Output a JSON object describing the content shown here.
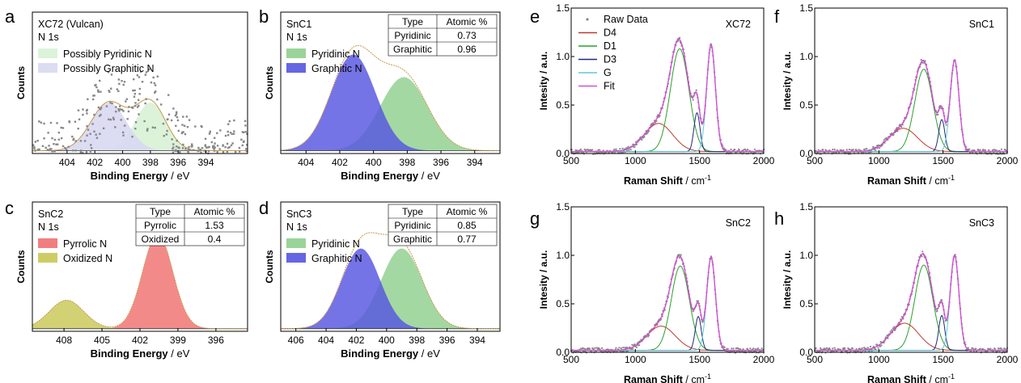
{
  "colors": {
    "pyridinic": "#8fcf8f",
    "graphitic": "#5555e0",
    "pyrrolic": "#f07070",
    "oxidized": "#c8c855",
    "possibly_pyridinic": "#d8f2d6",
    "possibly_graphitic": "#d8d8f2",
    "xps_envelope": "#c8964a",
    "raw_points": "#888888",
    "D4": "#c0392b",
    "D1": "#2ca02c",
    "D3": "#1f2a7a",
    "G": "#5fc8d8",
    "Fit": "#d050d0"
  },
  "chart_data": [
    {
      "panel": "a",
      "type": "area",
      "sample": "XC72 (Vulcan)",
      "line": "N 1s",
      "xlabel_bold": "Binding Energy",
      "xlabel_unit": " / eV",
      "ylabel": "Counts",
      "xlim": [
        406.5,
        391
      ],
      "ylim": [
        0,
        1.0
      ],
      "xticks": [
        404,
        402,
        400,
        398,
        396,
        394
      ],
      "peaks": [
        {
          "name": "Possibly Pyridinic N",
          "center": 398.0,
          "fwhm": 2.6,
          "height": 0.34,
          "color": "possibly_pyridinic"
        },
        {
          "name": "Possibly Graphitic N",
          "center": 401.0,
          "fwhm": 3.0,
          "height": 0.34,
          "color": "possibly_graphitic"
        }
      ],
      "legend": [
        "Possibly Pyridinic N",
        "Possibly Graphitic N"
      ],
      "scatter": true,
      "table": null
    },
    {
      "panel": "b",
      "type": "area",
      "sample": "SnC1",
      "line": "N 1s",
      "xlabel_bold": "Binding Energy",
      "xlabel_unit": " / eV",
      "ylabel": "Counts",
      "xlim": [
        405.5,
        392.5
      ],
      "ylim": [
        0,
        1.0
      ],
      "xticks": [
        404,
        402,
        400,
        398,
        396,
        394
      ],
      "peaks": [
        {
          "name": "Pyridinic N",
          "center": 398.2,
          "fwhm": 3.3,
          "height": 0.52,
          "color": "pyridinic"
        },
        {
          "name": "Graphitic N",
          "center": 401.2,
          "fwhm": 3.1,
          "height": 0.68,
          "color": "graphitic"
        }
      ],
      "legend": [
        "Pyridinic N",
        "Graphitic N"
      ],
      "scatter": false,
      "table": {
        "headers": [
          "Type",
          "Atomic %"
        ],
        "rows": [
          [
            "Pyridinic",
            "0.73"
          ],
          [
            "Graphitic",
            "0.96"
          ]
        ]
      }
    },
    {
      "panel": "c",
      "type": "area",
      "sample": "SnC2",
      "line": "N 1s",
      "xlabel_bold": "Binding Energy",
      "xlabel_unit": " / eV",
      "ylabel": "Counts",
      "xlim": [
        410.5,
        393.5
      ],
      "ylim": [
        0,
        1.0
      ],
      "xticks": [
        408,
        405,
        402,
        399,
        396
      ],
      "peaks": [
        {
          "name": "Pyrrolic N",
          "center": 400.6,
          "fwhm": 2.8,
          "height": 0.73,
          "color": "pyrrolic"
        },
        {
          "name": "Oxidized N",
          "center": 407.8,
          "fwhm": 3.2,
          "height": 0.22,
          "color": "oxidized"
        }
      ],
      "legend": [
        "Pyrrolic N",
        "Oxidized N"
      ],
      "scatter": false,
      "table": {
        "headers": [
          "Type",
          "Atomic %"
        ],
        "rows": [
          [
            "Pyrrolic",
            "1.53"
          ],
          [
            "Oxidized",
            "0.4"
          ]
        ]
      }
    },
    {
      "panel": "d",
      "type": "area",
      "sample": "SnC3",
      "line": "N 1s",
      "xlabel_bold": "Binding Energy",
      "xlabel_unit": " / eV",
      "ylabel": "Counts",
      "xlim": [
        407,
        392.5
      ],
      "ylim": [
        0,
        1.0
      ],
      "xticks": [
        406,
        404,
        402,
        400,
        398,
        396,
        394
      ],
      "peaks": [
        {
          "name": "Pyridinic N",
          "center": 399.0,
          "fwhm": 3.2,
          "height": 0.62,
          "color": "pyridinic"
        },
        {
          "name": "Graphitic N",
          "center": 401.7,
          "fwhm": 3.0,
          "height": 0.62,
          "color": "graphitic"
        }
      ],
      "legend": [
        "Pyridinic N",
        "Graphitic N"
      ],
      "scatter": false,
      "table": {
        "headers": [
          "Type",
          "Atomic %"
        ],
        "rows": [
          [
            "Pyridinic",
            "0.85"
          ],
          [
            "Graphitic",
            "0.77"
          ]
        ]
      }
    },
    {
      "panel": "e",
      "type": "line",
      "sample": "XC72",
      "xlabel_bold": "Raman Shift",
      "xlabel_unit": " / cm",
      "xlabel_sup": "-1",
      "ylabel": "Intesity / a.u.",
      "xlim": [
        500,
        2000
      ],
      "ylim": [
        0,
        1.5
      ],
      "xticks": [
        500,
        1000,
        1500,
        2000
      ],
      "yticks": [
        0.0,
        0.5,
        1.0,
        1.5
      ],
      "ytick_labels": [
        "0.0",
        "0.5",
        "1.0",
        "1.5"
      ],
      "bands": [
        {
          "name": "D4",
          "center": 1180,
          "fwhm": 260,
          "height": 0.29
        },
        {
          "name": "D1",
          "center": 1345,
          "fwhm": 170,
          "height": 1.06
        },
        {
          "name": "D3",
          "center": 1480,
          "fwhm": 55,
          "height": 0.4
        },
        {
          "name": "G",
          "center": 1590,
          "fwhm": 80,
          "height": 1.1
        }
      ],
      "legend": [
        "Raw Data",
        "D4",
        "D1",
        "D3",
        "G",
        "Fit"
      ]
    },
    {
      "panel": "f",
      "type": "line",
      "sample": "SnC1",
      "xlabel_bold": "Raman Shift",
      "xlabel_unit": " / cm",
      "xlabel_sup": "-1",
      "ylabel": "Intesity / a.u.",
      "xlim": [
        500,
        2000
      ],
      "ylim": [
        0,
        1.5
      ],
      "xticks": [
        500,
        1000,
        1500,
        2000
      ],
      "yticks": [
        0.0,
        0.5,
        1.0,
        1.5
      ],
      "ytick_labels": [
        "0.0",
        "0.5",
        "1.0",
        "1.5"
      ],
      "bands": [
        {
          "name": "D4",
          "center": 1190,
          "fwhm": 260,
          "height": 0.24
        },
        {
          "name": "D1",
          "center": 1350,
          "fwhm": 165,
          "height": 0.85
        },
        {
          "name": "D3",
          "center": 1490,
          "fwhm": 55,
          "height": 0.33
        },
        {
          "name": "G",
          "center": 1590,
          "fwhm": 80,
          "height": 0.94
        }
      ],
      "legend": null
    },
    {
      "panel": "g",
      "type": "line",
      "sample": "SnC2",
      "xlabel_bold": "Raman Shift",
      "xlabel_unit": " / cm",
      "xlabel_sup": "-1",
      "ylabel": "Intesity / a.u.",
      "xlim": [
        500,
        2000
      ],
      "ylim": [
        0,
        1.5
      ],
      "xticks": [
        500,
        1000,
        1500,
        2000
      ],
      "yticks": [
        0.0,
        0.5,
        1.0,
        1.5
      ],
      "ytick_labels": [
        "0.0",
        "0.5",
        "1.0",
        "1.5"
      ],
      "bands": [
        {
          "name": "D4",
          "center": 1200,
          "fwhm": 260,
          "height": 0.25
        },
        {
          "name": "D1",
          "center": 1350,
          "fwhm": 165,
          "height": 0.87
        },
        {
          "name": "D3",
          "center": 1490,
          "fwhm": 55,
          "height": 0.35
        },
        {
          "name": "G",
          "center": 1590,
          "fwhm": 80,
          "height": 0.96
        }
      ],
      "legend": null
    },
    {
      "panel": "h",
      "type": "line",
      "sample": "SnC3",
      "xlabel_bold": "Raman Shift",
      "xlabel_unit": " / cm",
      "xlabel_sup": "-1",
      "ylabel": "Intesity / a.u.",
      "xlim": [
        500,
        2000
      ],
      "ylim": [
        0,
        1.5
      ],
      "xticks": [
        500,
        1000,
        1500,
        2000
      ],
      "yticks": [
        0.0,
        0.5,
        1.0,
        1.5
      ],
      "ytick_labels": [
        "0.0",
        "0.5",
        "1.0",
        "1.5"
      ],
      "bands": [
        {
          "name": "D4",
          "center": 1200,
          "fwhm": 260,
          "height": 0.28
        },
        {
          "name": "D1",
          "center": 1350,
          "fwhm": 165,
          "height": 0.88
        },
        {
          "name": "D3",
          "center": 1490,
          "fwhm": 55,
          "height": 0.36
        },
        {
          "name": "G",
          "center": 1590,
          "fwhm": 80,
          "height": 0.98
        }
      ],
      "legend": null
    }
  ]
}
